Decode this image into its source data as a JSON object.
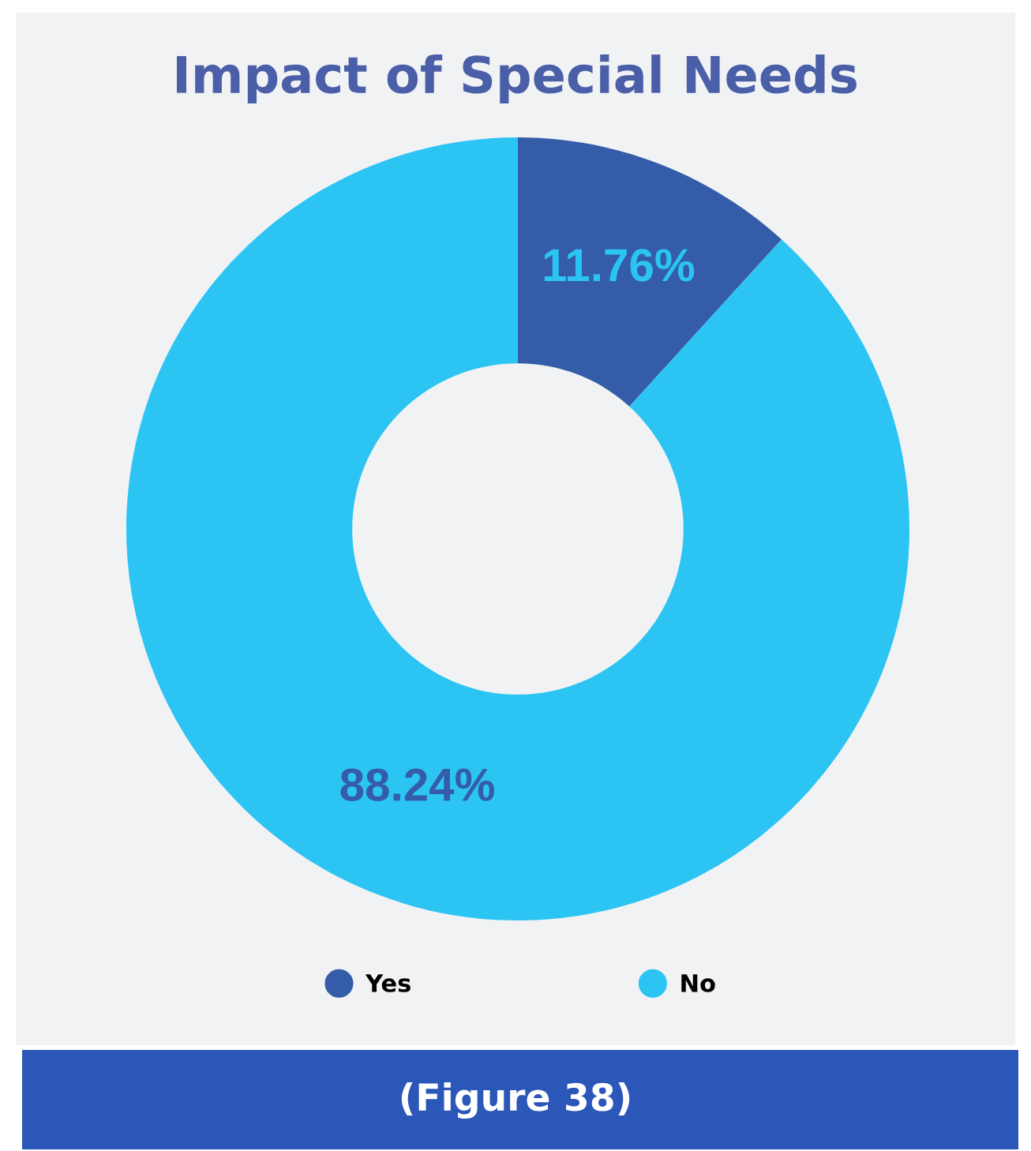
{
  "chart_data": {
    "type": "donut",
    "title": "Impact of Special Needs",
    "categories": [
      "Yes",
      "No"
    ],
    "values": [
      11.76,
      88.24
    ],
    "colors": [
      "#345ca8",
      "#2cc4f3"
    ],
    "value_labels": [
      "11.76%",
      "88.24%"
    ],
    "legend": "bottom",
    "annotations": [
      "(Figure 38)"
    ]
  }
}
